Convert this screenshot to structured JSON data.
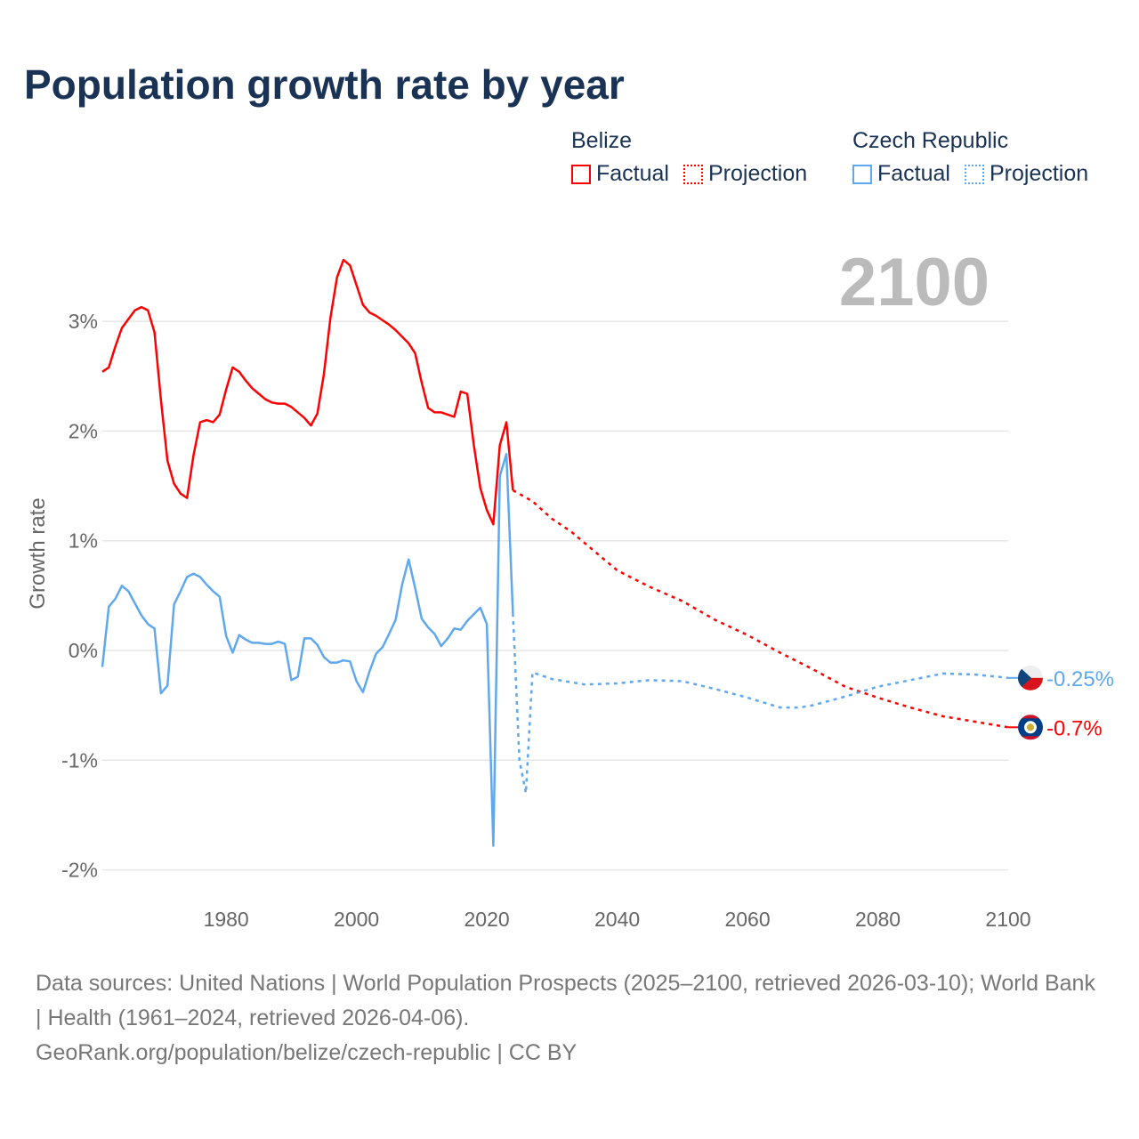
{
  "title": "Population growth rate by year",
  "legend": {
    "groups": [
      {
        "name": "Belize",
        "color": "#ff0000",
        "factual_label": "Factual",
        "projection_label": "Projection"
      },
      {
        "name": "Czech Republic",
        "color": "#5fa8ee",
        "factual_label": "Factual",
        "projection_label": "Projection"
      }
    ]
  },
  "year_label": "2100",
  "footer": {
    "sources": "Data sources: United Nations | World Population Prospects (2025–2100, retrieved 2026-03-10); World Bank | Health (1961–2024, retrieved 2026-04-06).",
    "credit": "GeoRank.org/population/belize/czech-republic | CC BY"
  },
  "chart_data": {
    "type": "line",
    "title": "Population growth rate by year",
    "xlabel": "",
    "ylabel": "Growth rate",
    "xlim": [
      1961,
      2100
    ],
    "ylim": [
      -2.2,
      3.8
    ],
    "xticks": [
      1980,
      2000,
      2020,
      2040,
      2060,
      2080,
      2100
    ],
    "yticks": [
      {
        "v": 3,
        "label": "3%"
      },
      {
        "v": 2,
        "label": "2%"
      },
      {
        "v": 1,
        "label": "1%"
      },
      {
        "v": 0,
        "label": "0%"
      },
      {
        "v": -1,
        "label": "-1%"
      },
      {
        "v": -2,
        "label": "-2%"
      }
    ],
    "grid": true,
    "series": [
      {
        "name": "Belize",
        "kind": "Factual",
        "color": "#ff0000",
        "x": [
          1961,
          1962,
          1963,
          1964,
          1965,
          1966,
          1967,
          1968,
          1969,
          1970,
          1971,
          1972,
          1973,
          1974,
          1975,
          1976,
          1977,
          1978,
          1979,
          1980,
          1981,
          1982,
          1983,
          1984,
          1985,
          1986,
          1987,
          1988,
          1989,
          1990,
          1991,
          1992,
          1993,
          1994,
          1995,
          1996,
          1997,
          1998,
          1999,
          2000,
          2001,
          2002,
          2003,
          2004,
          2005,
          2006,
          2007,
          2008,
          2009,
          2010,
          2011,
          2012,
          2013,
          2014,
          2015,
          2016,
          2017,
          2018,
          2019,
          2020,
          2021,
          2022,
          2023,
          2024
        ],
        "y": [
          2.54,
          2.58,
          2.77,
          2.94,
          3.02,
          3.1,
          3.13,
          3.1,
          2.9,
          2.28,
          1.73,
          1.52,
          1.43,
          1.39,
          1.78,
          2.08,
          2.1,
          2.08,
          2.15,
          2.38,
          2.58,
          2.54,
          2.46,
          2.39,
          2.34,
          2.29,
          2.26,
          2.25,
          2.25,
          2.22,
          2.17,
          2.12,
          2.05,
          2.16,
          2.52,
          3.03,
          3.4,
          3.56,
          3.51,
          3.33,
          3.15,
          3.08,
          3.05,
          3.01,
          2.97,
          2.92,
          2.86,
          2.8,
          2.71,
          2.44,
          2.21,
          2.17,
          2.17,
          2.15,
          2.13,
          2.36,
          2.34,
          1.87,
          1.48,
          1.28,
          1.15,
          1.87,
          2.08,
          1.46
        ]
      },
      {
        "name": "Belize",
        "kind": "Projection",
        "color": "#ff0000",
        "x": [
          2024,
          2027,
          2030,
          2033,
          2035,
          2040,
          2045,
          2050,
          2055,
          2060,
          2065,
          2070,
          2075,
          2080,
          2085,
          2090,
          2095,
          2100
        ],
        "y": [
          1.46,
          1.36,
          1.2,
          1.08,
          0.98,
          0.73,
          0.58,
          0.45,
          0.28,
          0.14,
          -0.02,
          -0.17,
          -0.33,
          -0.43,
          -0.52,
          -0.6,
          -0.65,
          -0.7
        ]
      },
      {
        "name": "Czech Republic",
        "kind": "Factual",
        "color": "#5fa8ee",
        "x": [
          1961,
          1962,
          1963,
          1964,
          1965,
          1966,
          1967,
          1968,
          1969,
          1970,
          1971,
          1972,
          1973,
          1974,
          1975,
          1976,
          1977,
          1978,
          1979,
          1980,
          1981,
          1982,
          1983,
          1984,
          1985,
          1986,
          1987,
          1988,
          1989,
          1990,
          1991,
          1992,
          1993,
          1994,
          1995,
          1996,
          1997,
          1998,
          1999,
          2000,
          2001,
          2002,
          2003,
          2004,
          2005,
          2006,
          2007,
          2008,
          2009,
          2010,
          2011,
          2012,
          2013,
          2014,
          2015,
          2016,
          2017,
          2018,
          2019,
          2020,
          2021,
          2022,
          2023,
          2024
        ],
        "y": [
          -0.15,
          0.4,
          0.47,
          0.59,
          0.54,
          0.43,
          0.32,
          0.24,
          0.2,
          -0.39,
          -0.32,
          0.42,
          0.54,
          0.67,
          0.7,
          0.67,
          0.6,
          0.54,
          0.49,
          0.13,
          -0.02,
          0.14,
          0.1,
          0.07,
          0.07,
          0.06,
          0.06,
          0.08,
          0.06,
          -0.27,
          -0.24,
          0.11,
          0.11,
          0.05,
          -0.06,
          -0.11,
          -0.11,
          -0.09,
          -0.1,
          -0.28,
          -0.38,
          -0.19,
          -0.03,
          0.03,
          0.15,
          0.28,
          0.6,
          0.83,
          0.57,
          0.29,
          0.21,
          0.15,
          0.04,
          0.11,
          0.2,
          0.19,
          0.27,
          0.33,
          0.39,
          0.24,
          -1.78,
          1.59,
          1.79,
          0.34
        ]
      },
      {
        "name": "Czech Republic",
        "kind": "Projection",
        "color": "#5fa8ee",
        "x": [
          2024,
          2025,
          2026,
          2027,
          2030,
          2035,
          2040,
          2045,
          2050,
          2055,
          2060,
          2065,
          2068,
          2070,
          2075,
          2080,
          2085,
          2090,
          2095,
          2100
        ],
        "y": [
          0.34,
          -1.0,
          -1.3,
          -0.2,
          -0.26,
          -0.31,
          -0.3,
          -0.27,
          -0.28,
          -0.35,
          -0.43,
          -0.52,
          -0.52,
          -0.5,
          -0.42,
          -0.33,
          -0.27,
          -0.21,
          -0.22,
          -0.25
        ]
      }
    ],
    "end_labels": [
      {
        "name": "Czech Republic",
        "label": "-0.25%",
        "value": -0.25,
        "color": "#5fa8ee",
        "flag": "czech-republic-flag"
      },
      {
        "name": "Belize",
        "label": "-0.7%",
        "value": -0.7,
        "color": "#ff0000",
        "flag": "belize-flag"
      }
    ]
  }
}
